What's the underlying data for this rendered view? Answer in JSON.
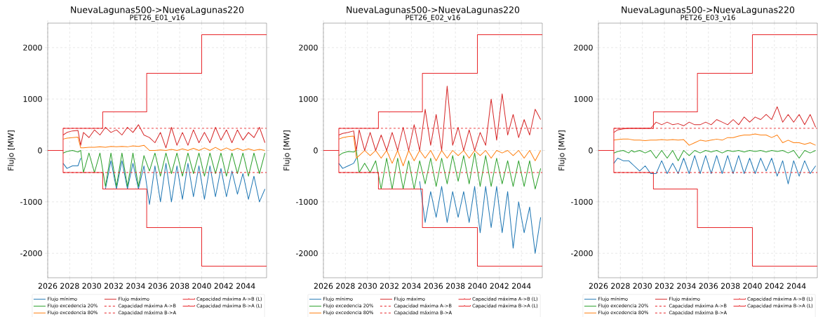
{
  "chart_data": [
    {
      "type": "line",
      "title": "NuevaLagunas500->NuevaLagunas220",
      "subtitle": "PET26_E01_v16",
      "ylabel": "Flujo [MW]",
      "xlim": [
        2026,
        2045.9
      ],
      "ylim": [
        -2475,
        2475
      ],
      "xticks": [
        2026,
        2028,
        2030,
        2032,
        2034,
        2036,
        2038,
        2040,
        2042,
        2044
      ],
      "yticks": [
        -2000,
        -1000,
        0,
        1000,
        2000
      ],
      "grid": true,
      "legend": "bottom",
      "x": [
        2027.4,
        2027.75,
        2028.25,
        2028.75,
        2029.0,
        2029.25,
        2029.75,
        2030.25,
        2030.75,
        2031.25,
        2031.75,
        2032.25,
        2032.75,
        2033.25,
        2033.75,
        2034.25,
        2034.75,
        2035.25,
        2035.75,
        2036.25,
        2036.75,
        2037.25,
        2037.75,
        2038.25,
        2038.75,
        2039.25,
        2039.75,
        2040.25,
        2040.75,
        2041.25,
        2041.75,
        2042.25,
        2042.75,
        2043.25,
        2043.75,
        2044.25,
        2044.75,
        2045.25,
        2045.75
      ],
      "series": [
        {
          "name": "Flujo mínimo",
          "color": "#1f77b4",
          "type": "line",
          "line_style": "solid",
          "values": [
            -250,
            -350,
            -300,
            -300,
            -150,
            null,
            null,
            null,
            null,
            -750,
            -200,
            -750,
            -200,
            -750,
            -250,
            -750,
            -300,
            -1050,
            -300,
            -1000,
            -250,
            -1000,
            -300,
            -950,
            -250,
            -900,
            -300,
            -950,
            -300,
            -900,
            -350,
            -900,
            -400,
            -850,
            -450,
            -950,
            -500,
            -1000,
            -750
          ]
        },
        {
          "name": "Flujo excedencia 20%",
          "color": "#2ca02c",
          "type": "line",
          "line_style": "solid",
          "values": [
            -50,
            -20,
            0,
            -30,
            0,
            -430,
            -50,
            -430,
            -50,
            -700,
            -50,
            -700,
            -50,
            -700,
            -50,
            -700,
            -100,
            -400,
            -50,
            -500,
            -50,
            -450,
            -50,
            -500,
            -50,
            -450,
            -50,
            -500,
            -50,
            -450,
            -50,
            -500,
            -50,
            -450,
            -50,
            -500,
            -50,
            -450,
            -50
          ]
        },
        {
          "name": "Flujo excedencia 80%",
          "color": "#ff7f0e",
          "type": "line",
          "line_style": "solid",
          "values": [
            220,
            240,
            250,
            260,
            50,
            50,
            60,
            60,
            70,
            60,
            80,
            70,
            80,
            70,
            90,
            80,
            100,
            0,
            0,
            10,
            0,
            20,
            0,
            30,
            0,
            40,
            0,
            50,
            0,
            60,
            0,
            50,
            0,
            40,
            0,
            30,
            0,
            20,
            0
          ]
        },
        {
          "name": "Flujo máximo",
          "color": "#d62728",
          "type": "line",
          "line_style": "solid",
          "values": [
            300,
            350,
            380,
            390,
            100,
            350,
            250,
            400,
            300,
            450,
            350,
            400,
            300,
            450,
            350,
            500,
            300,
            250,
            150,
            350,
            50,
            450,
            100,
            350,
            100,
            400,
            150,
            350,
            150,
            450,
            200,
            400,
            150,
            400,
            200,
            350,
            250,
            450,
            150
          ]
        },
        {
          "name": "Capacidad máxima A->B",
          "color": "#e8262a",
          "type": "line",
          "line_style": "dashed",
          "x": [
            2027.4,
            2045.9
          ],
          "values": [
            430,
            430
          ]
        },
        {
          "name": "Capacidad máxima B->A",
          "color": "#e8262a",
          "type": "line",
          "line_style": "dashed",
          "x": [
            2027.4,
            2045.9
          ],
          "values": [
            -430,
            -430
          ]
        },
        {
          "name": "Capacidad máxima A->B (L)",
          "color": "#e8262a",
          "type": "step",
          "line_style": "solid",
          "x": [
            2026,
            2027.4,
            2031,
            2035,
            2040,
            2045.9
          ],
          "values": [
            0,
            430,
            750,
            1500,
            2250,
            2250
          ]
        },
        {
          "name": "Capacidad máxima B->A (L)",
          "color": "#e8262a",
          "type": "step",
          "line_style": "solid",
          "x": [
            2026,
            2027.4,
            2031,
            2035,
            2040,
            2045.9
          ],
          "values": [
            0,
            -430,
            -750,
            -1500,
            -2250,
            -2250
          ]
        }
      ]
    },
    {
      "type": "line",
      "title": "NuevaLagunas500->NuevaLagunas220",
      "subtitle": "PET26_E02_v16",
      "ylabel": "Flujo [MW]",
      "xlim": [
        2026,
        2045.9
      ],
      "ylim": [
        -2475,
        2475
      ],
      "xticks": [
        2026,
        2028,
        2030,
        2032,
        2034,
        2036,
        2038,
        2040,
        2042,
        2044
      ],
      "yticks": [
        -2000,
        -1000,
        0,
        1000,
        2000
      ],
      "grid": true,
      "legend": "bottom",
      "x": [
        2027.4,
        2027.75,
        2028.25,
        2028.75,
        2029.0,
        2029.25,
        2029.75,
        2030.25,
        2030.75,
        2031.25,
        2031.75,
        2032.25,
        2032.75,
        2033.25,
        2033.75,
        2034.25,
        2034.75,
        2035.25,
        2035.75,
        2036.25,
        2036.75,
        2037.25,
        2037.75,
        2038.25,
        2038.75,
        2039.25,
        2039.75,
        2040.25,
        2040.75,
        2041.25,
        2041.75,
        2042.25,
        2042.75,
        2043.25,
        2043.75,
        2044.25,
        2044.75,
        2045.25,
        2045.75
      ],
      "series": [
        {
          "name": "Flujo mínimo",
          "color": "#1f77b4",
          "type": "line",
          "line_style": "solid",
          "values": [
            -250,
            -350,
            -300,
            -250,
            -150,
            null,
            null,
            null,
            null,
            null,
            null,
            null,
            null,
            null,
            null,
            null,
            -600,
            -1400,
            -800,
            -1300,
            -700,
            -1400,
            -800,
            -1300,
            -800,
            -1400,
            -700,
            -1600,
            -700,
            -1500,
            -700,
            -1600,
            -800,
            -1900,
            -1000,
            -1600,
            -1100,
            -2000,
            -1300
          ]
        },
        {
          "name": "Flujo excedencia 20%",
          "color": "#2ca02c",
          "type": "line",
          "line_style": "solid",
          "values": [
            -100,
            -50,
            -20,
            -30,
            0,
            -430,
            -250,
            -430,
            -200,
            -750,
            -150,
            -750,
            -150,
            -750,
            -200,
            -750,
            -200,
            -650,
            -150,
            -700,
            -150,
            -650,
            -100,
            -600,
            -100,
            -650,
            -50,
            -700,
            -100,
            -700,
            -150,
            -650,
            -200,
            -700,
            -200,
            -700,
            -200,
            -750,
            -350
          ]
        },
        {
          "name": "Flujo excedencia 80%",
          "color": "#ff7f0e",
          "type": "line",
          "line_style": "solid",
          "values": [
            220,
            250,
            270,
            280,
            -150,
            -100,
            0,
            -100,
            0,
            -150,
            0,
            -250,
            0,
            -300,
            0,
            -200,
            0,
            -150,
            0,
            -200,
            0,
            -150,
            0,
            -100,
            0,
            -150,
            0,
            -100,
            0,
            -150,
            0,
            -50,
            0,
            -100,
            0,
            -150,
            0,
            -200,
            0
          ]
        },
        {
          "name": "Flujo máximo",
          "color": "#d62728",
          "type": "line",
          "line_style": "solid",
          "values": [
            300,
            330,
            350,
            380,
            0,
            400,
            0,
            350,
            0,
            300,
            0,
            350,
            0,
            450,
            0,
            500,
            0,
            800,
            100,
            700,
            0,
            1250,
            100,
            450,
            0,
            400,
            0,
            350,
            100,
            1000,
            200,
            1100,
            300,
            700,
            250,
            600,
            300,
            800,
            600
          ]
        },
        {
          "name": "Capacidad máxima A->B",
          "color": "#e8262a",
          "type": "line",
          "line_style": "dashed",
          "x": [
            2027.4,
            2045.9
          ],
          "values": [
            430,
            430
          ]
        },
        {
          "name": "Capacidad máxima B->A",
          "color": "#e8262a",
          "type": "line",
          "line_style": "dashed",
          "x": [
            2027.4,
            2045.9
          ],
          "values": [
            -430,
            -430
          ]
        },
        {
          "name": "Capacidad máxima A->B (L)",
          "color": "#e8262a",
          "type": "step",
          "line_style": "solid",
          "x": [
            2026,
            2027.4,
            2031,
            2035,
            2040,
            2045.9
          ],
          "values": [
            0,
            430,
            750,
            1500,
            2250,
            2250
          ]
        },
        {
          "name": "Capacidad máxima B->A (L)",
          "color": "#e8262a",
          "type": "step",
          "line_style": "solid",
          "x": [
            2026,
            2027.4,
            2031,
            2035,
            2040,
            2045.9
          ],
          "values": [
            0,
            -430,
            -750,
            -1500,
            -2250,
            -2250
          ]
        }
      ]
    },
    {
      "type": "line",
      "title": "NuevaLagunas500->NuevaLagunas220",
      "subtitle": "PET26_E03_v16",
      "ylabel": "Flujo [MW]",
      "xlim": [
        2026,
        2045.9
      ],
      "ylim": [
        -2475,
        2475
      ],
      "xticks": [
        2026,
        2028,
        2030,
        2032,
        2034,
        2036,
        2038,
        2040,
        2042,
        2044
      ],
      "yticks": [
        -2000,
        -1000,
        0,
        1000,
        2000
      ],
      "grid": true,
      "legend": "bottom",
      "x": [
        2027.4,
        2027.75,
        2028.25,
        2028.75,
        2029.0,
        2029.25,
        2029.75,
        2030.25,
        2030.75,
        2031.25,
        2031.75,
        2032.25,
        2032.75,
        2033.25,
        2033.75,
        2034.25,
        2034.75,
        2035.25,
        2035.75,
        2036.25,
        2036.75,
        2037.25,
        2037.75,
        2038.25,
        2038.75,
        2039.25,
        2039.75,
        2040.25,
        2040.75,
        2041.25,
        2041.75,
        2042.25,
        2042.75,
        2043.25,
        2043.75,
        2044.25,
        2044.75,
        2045.25,
        2045.75
      ],
      "series": [
        {
          "name": "Flujo mínimo",
          "color": "#1f77b4",
          "type": "line",
          "line_style": "solid",
          "values": [
            -250,
            -150,
            -200,
            -200,
            -250,
            -300,
            -400,
            -300,
            -450,
            -450,
            -200,
            -450,
            -250,
            -450,
            -150,
            -450,
            -100,
            -450,
            -100,
            -450,
            -100,
            -450,
            -100,
            -450,
            -100,
            -450,
            -150,
            -450,
            -150,
            -400,
            -150,
            -500,
            -200,
            -650,
            -200,
            -500,
            -200,
            -450,
            -300
          ]
        },
        {
          "name": "Flujo excedencia 20%",
          "color": "#2ca02c",
          "type": "line",
          "line_style": "solid",
          "values": [
            -50,
            -20,
            0,
            -50,
            0,
            -30,
            0,
            -50,
            0,
            -150,
            0,
            -150,
            0,
            -200,
            0,
            -100,
            0,
            -50,
            0,
            -30,
            0,
            -50,
            0,
            -20,
            0,
            -30,
            0,
            -20,
            0,
            -30,
            0,
            -20,
            0,
            -50,
            0,
            -150,
            0,
            -50,
            0
          ]
        },
        {
          "name": "Flujo excedencia 80%",
          "color": "#ff7f0e",
          "type": "line",
          "line_style": "solid",
          "values": [
            200,
            210,
            220,
            220,
            210,
            200,
            200,
            190,
            200,
            200,
            210,
            200,
            210,
            200,
            210,
            100,
            150,
            200,
            180,
            200,
            220,
            200,
            250,
            250,
            280,
            300,
            300,
            320,
            300,
            300,
            250,
            300,
            150,
            200,
            150,
            150,
            120,
            150,
            100
          ]
        },
        {
          "name": "Flujo máximo",
          "color": "#d62728",
          "type": "line",
          "line_style": "solid",
          "values": [
            350,
            400,
            420,
            430,
            430,
            430,
            430,
            430,
            430,
            550,
            500,
            550,
            500,
            520,
            480,
            550,
            500,
            500,
            550,
            500,
            600,
            550,
            500,
            600,
            500,
            650,
            550,
            650,
            600,
            700,
            600,
            850,
            550,
            700,
            550,
            700,
            500,
            700,
            450
          ]
        },
        {
          "name": "Capacidad máxima A->B",
          "color": "#e8262a",
          "type": "line",
          "line_style": "dashed",
          "x": [
            2027.4,
            2045.9
          ],
          "values": [
            430,
            430
          ]
        },
        {
          "name": "Capacidad máxima B->A",
          "color": "#e8262a",
          "type": "line",
          "line_style": "dashed",
          "x": [
            2027.4,
            2045.9
          ],
          "values": [
            -430,
            -430
          ]
        },
        {
          "name": "Capacidad máxima A->B (L)",
          "color": "#e8262a",
          "type": "step",
          "line_style": "solid",
          "x": [
            2026,
            2027.4,
            2031,
            2035,
            2040,
            2045.9
          ],
          "values": [
            0,
            430,
            750,
            1500,
            2250,
            2250
          ]
        },
        {
          "name": "Capacidad máxima B->A (L)",
          "color": "#e8262a",
          "type": "step",
          "line_style": "solid",
          "x": [
            2026,
            2027.4,
            2031,
            2035,
            2040,
            2045.9
          ],
          "values": [
            0,
            -430,
            -750,
            -1500,
            -2250,
            -2250
          ]
        }
      ]
    }
  ]
}
